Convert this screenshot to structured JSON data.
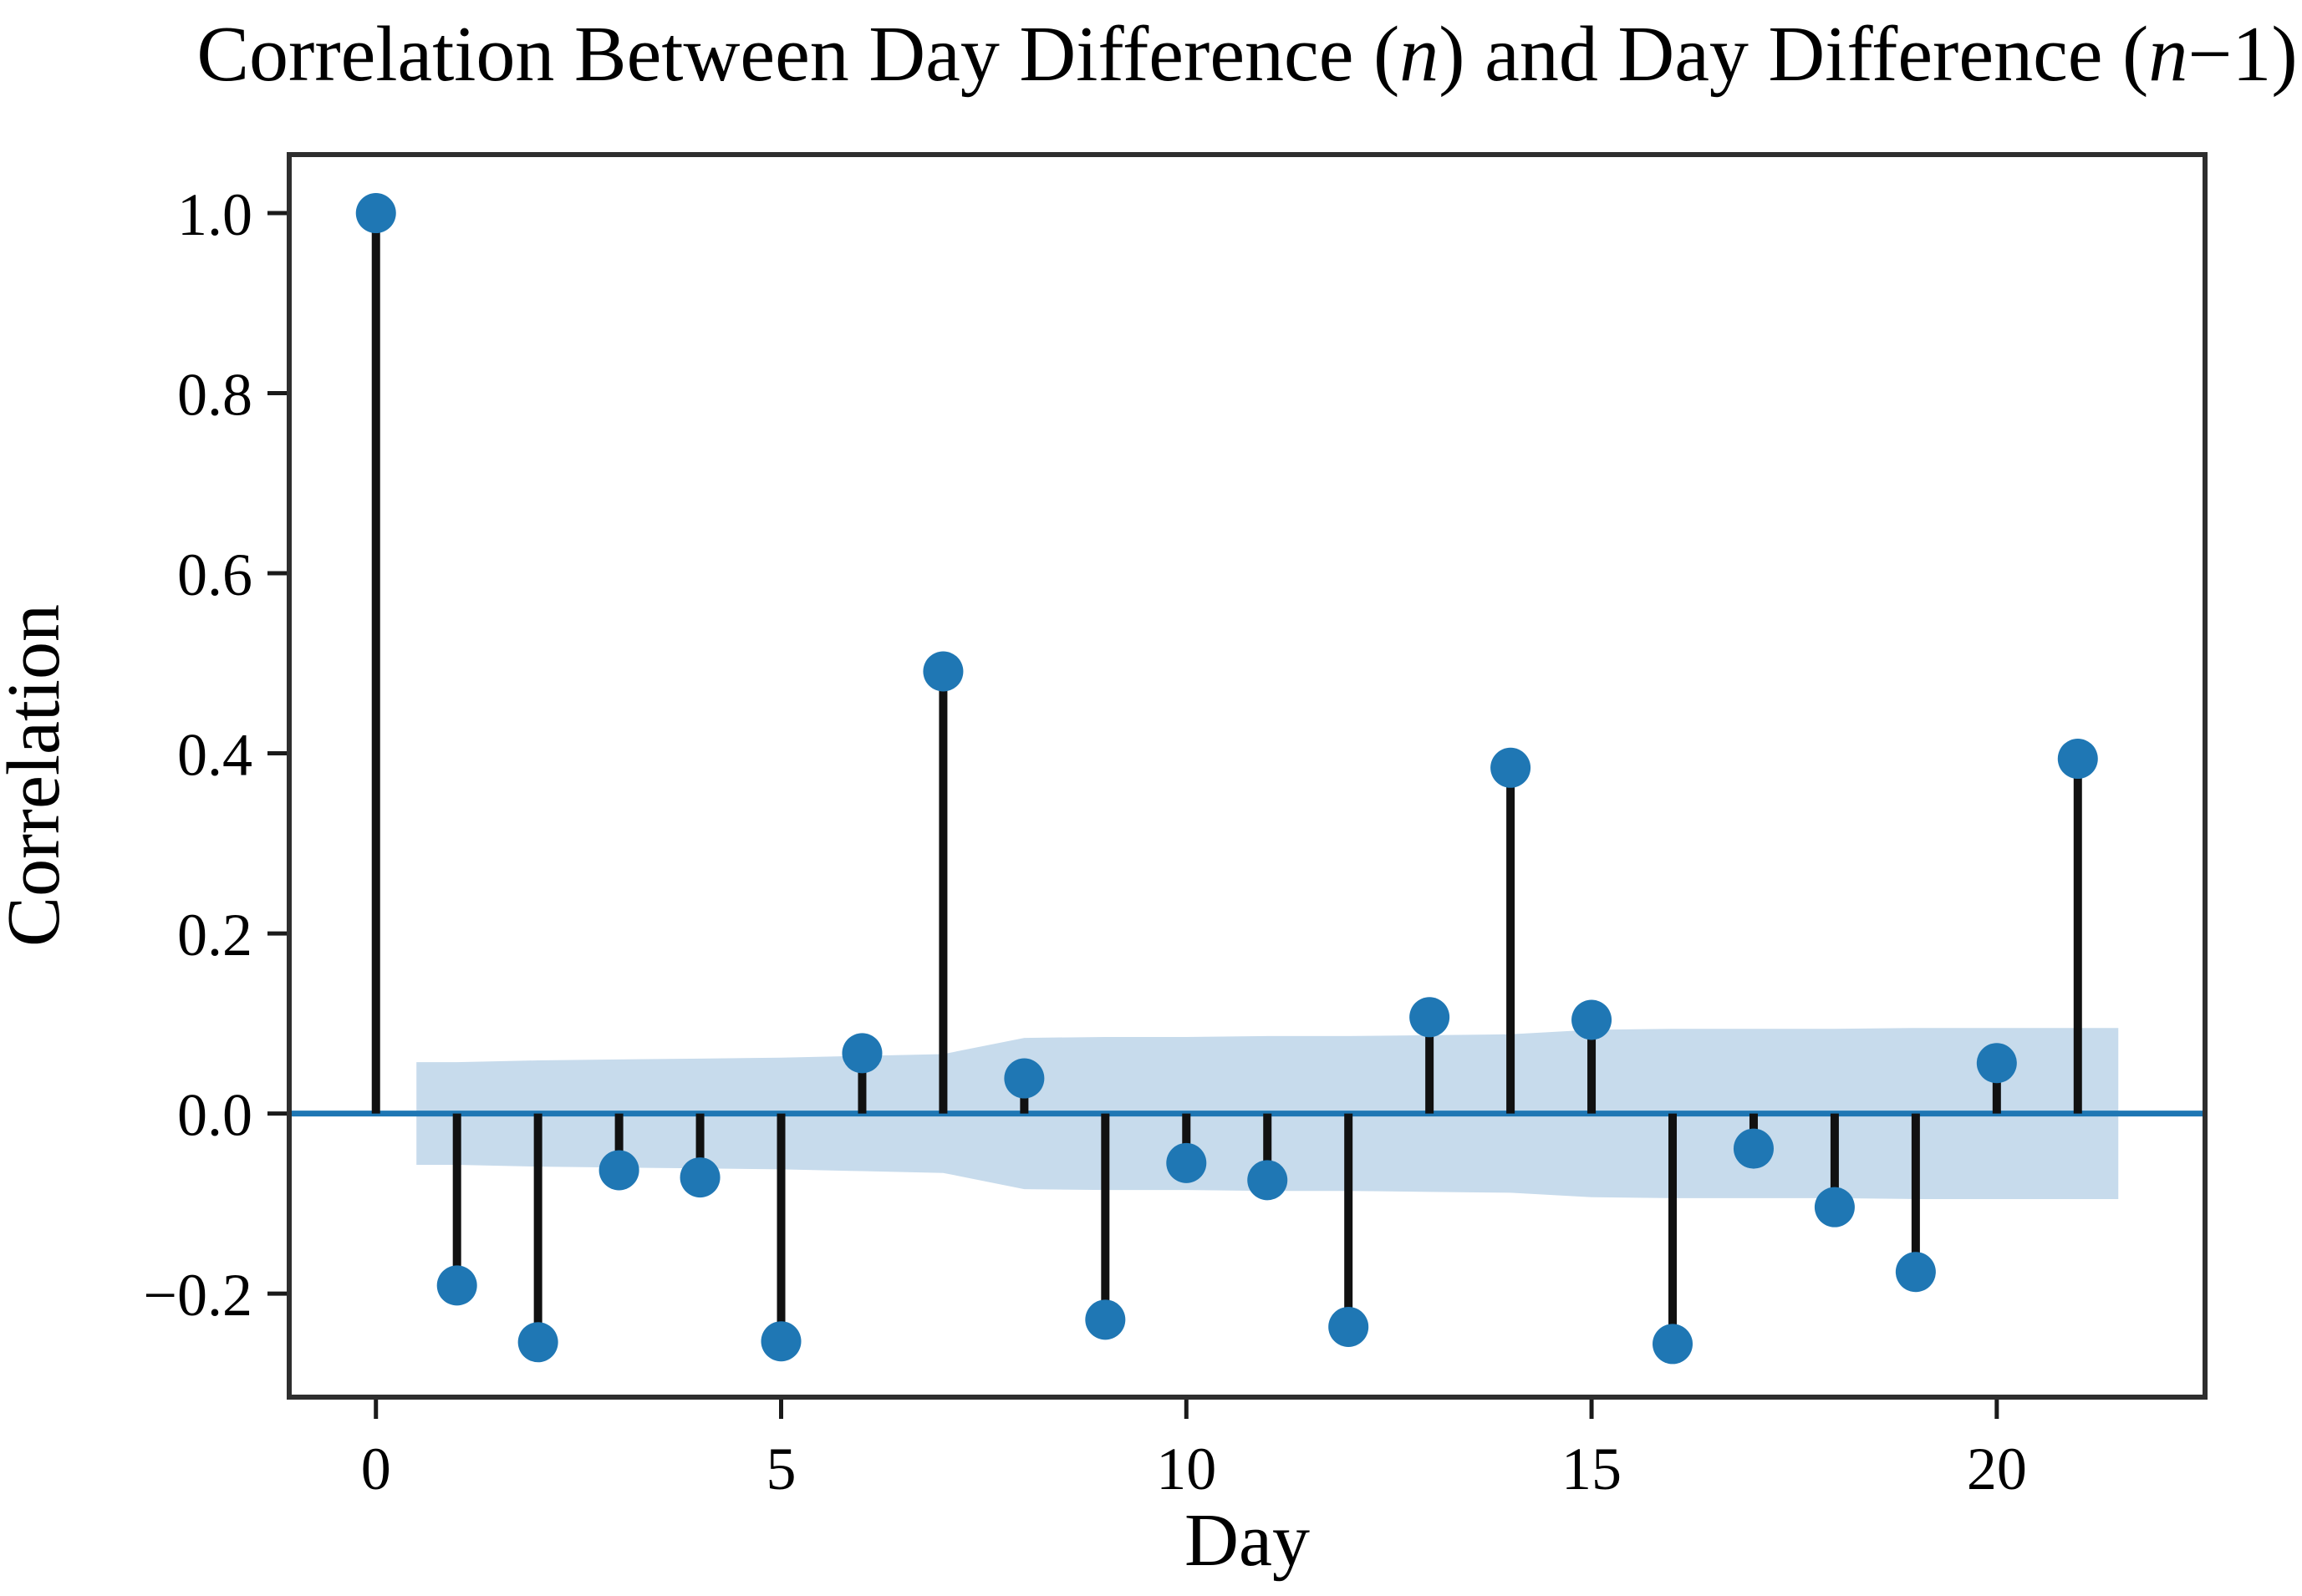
{
  "figure": {
    "title": "Correlation Between Day Difference (n) and Day Difference (n−1)",
    "title_segments": [
      {
        "text": "Correlation Between Day Difference (",
        "italic": false
      },
      {
        "text": "n",
        "italic": true
      },
      {
        "text": ") and Day Difference (",
        "italic": false
      },
      {
        "text": "n",
        "italic": true
      },
      {
        "text": "−1)",
        "italic": false
      }
    ]
  },
  "chart_data": {
    "type": "scatter",
    "subtype": "acf-stem-plot",
    "title": "Correlation Between Day Difference (n) and Day Difference (n−1)",
    "xlabel": "Day",
    "ylabel": "Correlation",
    "x": [
      0,
      1,
      2,
      3,
      4,
      5,
      6,
      7,
      8,
      9,
      10,
      11,
      12,
      13,
      14,
      15,
      16,
      17,
      18,
      19,
      20,
      21
    ],
    "values": [
      1.0,
      -0.191,
      -0.254,
      -0.063,
      -0.071,
      -0.253,
      0.067,
      0.491,
      0.039,
      -0.229,
      -0.055,
      -0.074,
      -0.237,
      0.107,
      0.384,
      0.104,
      -0.256,
      -0.039,
      -0.104,
      -0.176,
      0.056,
      0.394
    ],
    "confidence_band": {
      "x": [
        0.5,
        1,
        2,
        3,
        4,
        5,
        6,
        7,
        8,
        9,
        10,
        11,
        12,
        13,
        14,
        15,
        16,
        17,
        18,
        19,
        20,
        21,
        21.5
      ],
      "upper": [
        0.057,
        0.057,
        0.059,
        0.06,
        0.061,
        0.062,
        0.064,
        0.066,
        0.084,
        0.085,
        0.085,
        0.086,
        0.086,
        0.087,
        0.088,
        0.093,
        0.094,
        0.094,
        0.094,
        0.095,
        0.095,
        0.095,
        0.095
      ],
      "lower": [
        -0.057,
        -0.057,
        -0.059,
        -0.06,
        -0.061,
        -0.062,
        -0.064,
        -0.066,
        -0.084,
        -0.085,
        -0.085,
        -0.086,
        -0.086,
        -0.087,
        -0.088,
        -0.093,
        -0.094,
        -0.094,
        -0.094,
        -0.095,
        -0.095,
        -0.095,
        -0.095
      ]
    },
    "zero_line_y": 0.0,
    "xlim": [
      -1.07,
      22.57
    ],
    "ylim": [
      -0.315,
      1.065
    ],
    "xticks": [
      0,
      5,
      10,
      15,
      20
    ],
    "xtick_labels": [
      "0",
      "5",
      "10",
      "15",
      "20"
    ],
    "yticks": [
      1.0,
      0.8,
      0.6,
      0.4,
      0.2,
      0.0,
      -0.2
    ],
    "ytick_labels": [
      "1.0",
      "0.8",
      "0.6",
      "0.4",
      "0.2",
      "0.0",
      "−0.2"
    ],
    "grid": false,
    "legend": null,
    "colors": {
      "marker": "#1f77b4",
      "stem": "#111111",
      "zero_line": "#1f77b4",
      "band": "#c7dbec",
      "spine": "#2e2e2e",
      "tick": "#1a1a1a",
      "text": "#000000"
    }
  }
}
